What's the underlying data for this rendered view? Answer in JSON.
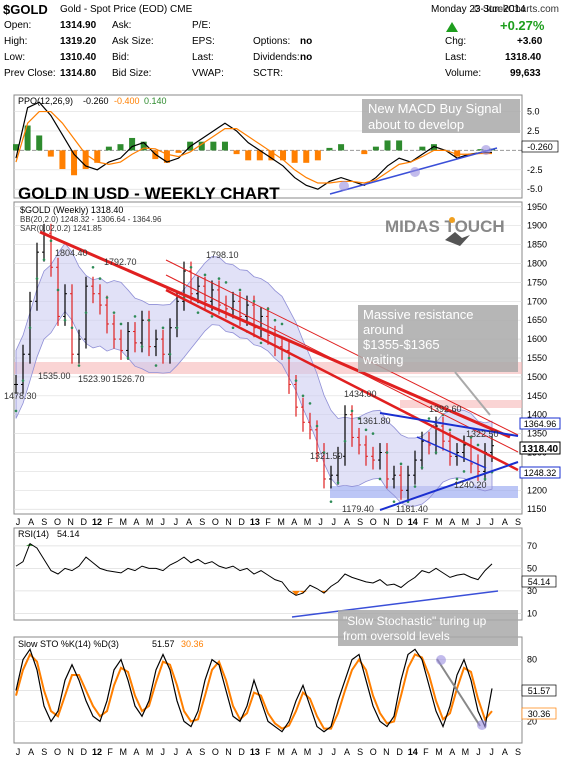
{
  "header": {
    "ticker": "$GOLD",
    "description": "Gold - Spot Price (EOD)  CME",
    "brand": "© StockCharts.com",
    "date": "Monday  23-Jun-2014",
    "change_pct": "+0.27%",
    "fields": [
      {
        "label": "Open:",
        "value": "1314.90"
      },
      {
        "label": "High:",
        "value": "1319.20"
      },
      {
        "label": "Low:",
        "value": "1310.40"
      },
      {
        "label": "Prev Close:",
        "value": "1314.80"
      },
      {
        "label": "Ask:",
        "value": ""
      },
      {
        "label": "Ask Size:",
        "value": ""
      },
      {
        "label": "Bid:",
        "value": ""
      },
      {
        "label": "Bid Size:",
        "value": ""
      },
      {
        "label": "P/E:",
        "value": ""
      },
      {
        "label": "EPS:",
        "value": ""
      },
      {
        "label": "Last:",
        "value": ""
      },
      {
        "label": "VWAP:",
        "value": ""
      },
      {
        "label": "Options:",
        "value": "no"
      },
      {
        "label": "Dividends:",
        "value": "no"
      },
      {
        "label": "SCTR:",
        "value": ""
      },
      {
        "label": "Chg:",
        "value": "+3.60"
      },
      {
        "label": "Last:",
        "value": "1318.40"
      },
      {
        "label": "Volume:",
        "value": "99,633"
      }
    ]
  },
  "chart_data": [
    {
      "type": "line",
      "panel": "ppo",
      "legend": {
        "name": "PPO(12,26,9)",
        "values": [
          "-0.260",
          "-0.400",
          "0.140"
        ],
        "colors": [
          "#000000",
          "#ff7f00",
          "#2e8b2e"
        ]
      },
      "y_ticks": [
        "5.0",
        "2.5",
        "-2.5",
        "-5.0"
      ],
      "ylim": [
        -6,
        7
      ],
      "last_label": "-0.260",
      "annotation": "New MACD Buy Signal\nabout to develop",
      "series": [
        {
          "values": [
            -1,
            5.5,
            6.2,
            4.5,
            2.0,
            -0.5,
            -2.0,
            -2.5,
            -1.5,
            -1.0,
            0.5,
            1.0,
            -0.5,
            -1.5,
            -1.0,
            0.5,
            1.5,
            2.5,
            3.5,
            2.5,
            1.0,
            0.0,
            -1.0,
            -2.0,
            -3.5,
            -4.5,
            -5.0,
            -4.0,
            -3.5,
            -4.0,
            -4.5,
            -3.5,
            -2.0,
            -1.0,
            -1.5,
            -0.5,
            0.5,
            0.0,
            -1.0,
            -0.5,
            -0.3,
            -0.26
          ]
        },
        {
          "values": [
            -1.5,
            3.5,
            5.0,
            5.0,
            3.5,
            1.5,
            -0.5,
            -1.5,
            -1.8,
            -1.5,
            -0.5,
            0.3,
            0.2,
            -0.5,
            -0.8,
            -0.2,
            0.8,
            1.8,
            2.8,
            2.8,
            1.8,
            0.8,
            -0.2,
            -1.2,
            -2.5,
            -3.5,
            -4.2,
            -4.2,
            -4.0,
            -4.0,
            -4.2,
            -3.8,
            -2.8,
            -1.8,
            -1.5,
            -0.8,
            0.0,
            0.0,
            -0.5,
            -0.5,
            -0.4,
            -0.4
          ]
        }
      ]
    },
    {
      "type": "line",
      "panel": "price",
      "title": "GOLD IN USD - WEEKLY CHART",
      "legend": [
        {
          "name": "$GOLD (Weekly) 1318.40"
        },
        {
          "name": "BB(20,2.0) 1248.32 - 1306.64 - 1364.96"
        },
        {
          "name": "SAR(0.02,0.2) 1241.85"
        }
      ],
      "watermark": "MIDAS TOUCH",
      "y_ticks": [
        "1950",
        "1900",
        "1850",
        "1800",
        "1750",
        "1700",
        "1650",
        "1600",
        "1550",
        "1500",
        "1450",
        "1400",
        "1350",
        "1300",
        "1250",
        "1200",
        "1150"
      ],
      "ylim": [
        1140,
        1960
      ],
      "value_labels": [
        {
          "text": "1804.40"
        },
        {
          "text": "1792.70"
        },
        {
          "text": "1798.10"
        },
        {
          "text": "1535.00"
        },
        {
          "text": "1523.90"
        },
        {
          "text": "1526.70"
        },
        {
          "text": "1478.30"
        },
        {
          "text": "1434.00"
        },
        {
          "text": "1361.80"
        },
        {
          "text": "1392.60"
        },
        {
          "text": "1322.50"
        },
        {
          "text": "1321.50"
        },
        {
          "text": "1240.20"
        },
        {
          "text": "1179.40"
        },
        {
          "text": "1181.40"
        }
      ],
      "right_tags": [
        "1364.96",
        "1318.40",
        "1248.32"
      ],
      "annotation": "Massive resistance\naround\n$1355-$1365\nwaiting",
      "series": [
        {
          "name": "close",
          "values": [
            1480,
            1560,
            1700,
            1830,
            1880,
            1790,
            1660,
            1720,
            1560,
            1600,
            1740,
            1720,
            1690,
            1640,
            1600,
            1570,
            1620,
            1590,
            1650,
            1580,
            1600,
            1560,
            1630,
            1700,
            1780,
            1720,
            1740,
            1700,
            1730,
            1690,
            1680,
            1700,
            1660,
            1690,
            1630,
            1660,
            1610,
            1580,
            1570,
            1480,
            1420,
            1380,
            1360,
            1300,
            1230,
            1240,
            1290,
            1400,
            1340,
            1320,
            1290,
            1280,
            1300,
            1230,
            1240,
            1200,
            1240,
            1280,
            1330,
            1320,
            1370,
            1330,
            1290,
            1300,
            1320,
            1270,
            1250,
            1300,
            1318
          ]
        }
      ]
    },
    {
      "type": "line",
      "panel": "rsi",
      "legend": {
        "name": "RSI(14)",
        "value": "54.14"
      },
      "y_ticks": [
        "70",
        "50",
        "30",
        "10"
      ],
      "ylim": [
        5,
        85
      ],
      "last_label": "54.14",
      "series": [
        {
          "values": [
            52,
            56,
            72,
            68,
            58,
            48,
            45,
            50,
            48,
            52,
            60,
            55,
            50,
            48,
            47,
            46,
            50,
            48,
            52,
            50,
            50,
            48,
            53,
            56,
            60,
            55,
            58,
            54,
            56,
            52,
            50,
            52,
            48,
            50,
            45,
            48,
            44,
            40,
            38,
            30,
            26,
            28,
            35,
            32,
            28,
            34,
            38,
            45,
            42,
            40,
            38,
            37,
            40,
            35,
            36,
            33,
            38,
            42,
            48,
            46,
            50,
            46,
            42,
            44,
            45,
            42,
            40,
            48,
            54
          ]
        }
      ]
    },
    {
      "type": "line",
      "panel": "stochastic",
      "legend": {
        "name": "Slow STO %K(14) %D(3)",
        "k": "51.57",
        "d": "30.36"
      },
      "y_ticks": [
        "80",
        "50",
        "20"
      ],
      "ylim": [
        0,
        100
      ],
      "last_labels": [
        "51.57",
        "30.36"
      ],
      "annotation": "\"Slow Stochastic\" turing up\nfrom oversold levels",
      "series": [
        {
          "name": "%K",
          "values": [
            50,
            80,
            90,
            70,
            35,
            20,
            30,
            60,
            75,
            60,
            40,
            25,
            20,
            40,
            70,
            80,
            60,
            35,
            25,
            40,
            70,
            85,
            70,
            40,
            20,
            15,
            30,
            60,
            80,
            75,
            50,
            25,
            20,
            35,
            60,
            40,
            20,
            15,
            10,
            20,
            40,
            55,
            35,
            15,
            10,
            15,
            40,
            60,
            80,
            85,
            60,
            35,
            20,
            15,
            25,
            60,
            85,
            90,
            80,
            55,
            30,
            15,
            35,
            65,
            80,
            60,
            30,
            15,
            52
          ]
        },
        {
          "name": "%D",
          "values": [
            45,
            70,
            85,
            78,
            50,
            30,
            25,
            45,
            65,
            65,
            50,
            35,
            25,
            30,
            55,
            72,
            68,
            45,
            30,
            35,
            58,
            78,
            75,
            55,
            30,
            20,
            22,
            45,
            70,
            78,
            60,
            35,
            22,
            28,
            48,
            45,
            28,
            18,
            13,
            16,
            30,
            48,
            42,
            25,
            13,
            13,
            28,
            50,
            70,
            80,
            70,
            45,
            28,
            18,
            20,
            45,
            72,
            85,
            82,
            65,
            40,
            22,
            28,
            52,
            72,
            68,
            42,
            22,
            30
          ]
        }
      ]
    }
  ],
  "x_axis": {
    "labels": [
      "J",
      "A",
      "S",
      "O",
      "N",
      "D",
      "12",
      "F",
      "M",
      "A",
      "M",
      "J",
      "J",
      "A",
      "S",
      "O",
      "N",
      "D",
      "13",
      "F",
      "M",
      "A",
      "M",
      "J",
      "J",
      "A",
      "S",
      "O",
      "N",
      "D",
      "14",
      "F",
      "M",
      "A",
      "M",
      "J",
      "J",
      "A",
      "S"
    ]
  }
}
